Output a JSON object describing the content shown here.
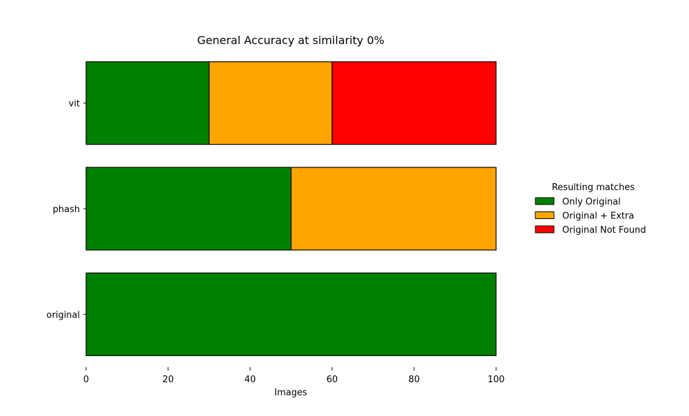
{
  "chart_data": {
    "type": "bar",
    "orientation": "horizontal",
    "stacked": true,
    "title": "General Accuracy at similarity 0%",
    "xlabel": "Images",
    "ylabel": "",
    "xlim": [
      0,
      100
    ],
    "xticks": [
      0,
      20,
      40,
      60,
      80,
      100
    ],
    "categories": [
      "vit",
      "phash",
      "original"
    ],
    "grid": false,
    "legend": {
      "title": "Resulting matches",
      "placement": "right"
    },
    "series": [
      {
        "name": "Only Original",
        "color": "#008000",
        "values": [
          30,
          50,
          100
        ]
      },
      {
        "name": "Original + Extra",
        "color": "#FFA500",
        "values": [
          30,
          50,
          0
        ]
      },
      {
        "name": "Original Not Found",
        "color": "#FF0000",
        "values": [
          40,
          0,
          0
        ]
      }
    ]
  }
}
